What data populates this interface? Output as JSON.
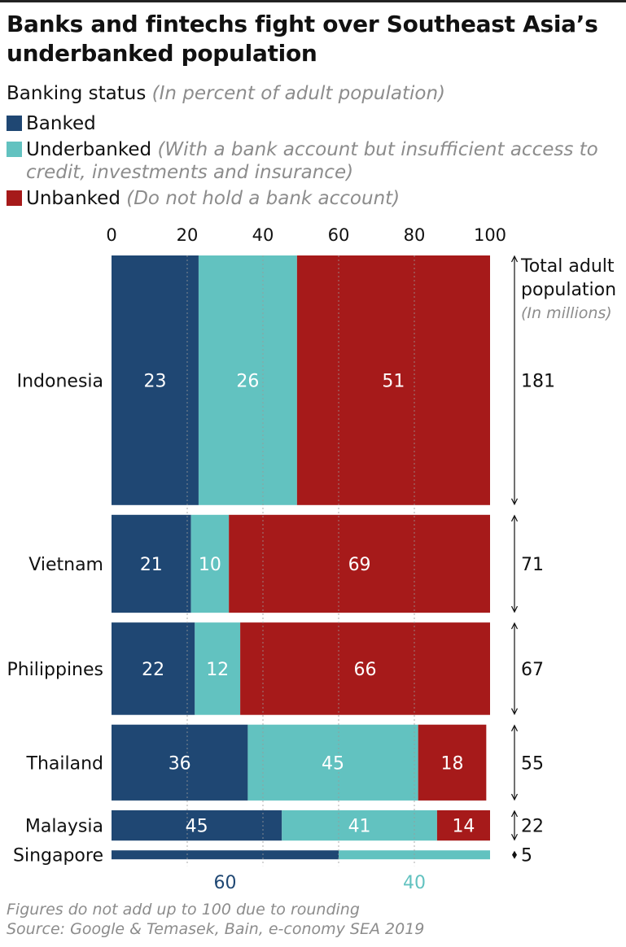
{
  "title": "Banks and fintechs fight over Southeast Asia’s underbanked population",
  "subtitle": {
    "text": "Banking status",
    "note": "(In percent of adult population)"
  },
  "legend": [
    {
      "label": "Banked",
      "note": "",
      "color": "#1f4773"
    },
    {
      "label": "Underbanked",
      "note": "(With a bank account but insufficient access to credit, investments and insurance)",
      "color": "#62c2c0"
    },
    {
      "label": "Unbanked",
      "note": "(Do not hold a bank account)",
      "color": "#a61a1a"
    }
  ],
  "right_header": {
    "line1": "Total adult",
    "line2": "population",
    "note": "(In millions)"
  },
  "footnotes": [
    "Figures do not add up to 100 due to rounding",
    "Source: Google & Temasek, Bain, e-conomy SEA 2019"
  ],
  "chart_data": {
    "type": "bar",
    "orientation": "horizontal",
    "stacked": true,
    "bar_height_encodes": "Total adult population (In millions)",
    "x_ticks": [
      "0",
      "20",
      "40",
      "60",
      "80",
      "100"
    ],
    "xlim": [
      0,
      100
    ],
    "grid": true,
    "categories": [
      "Indonesia",
      "Vietnam",
      "Philippines",
      "Thailand",
      "Malaysia",
      "Singapore"
    ],
    "population": [
      181,
      71,
      67,
      55,
      22,
      5
    ],
    "series": [
      {
        "name": "Banked",
        "values": [
          23,
          21,
          22,
          36,
          45,
          60
        ],
        "color": "#1f4773"
      },
      {
        "name": "Underbanked",
        "values": [
          26,
          10,
          12,
          45,
          41,
          40
        ],
        "color": "#62c2c0"
      },
      {
        "name": "Unbanked",
        "values": [
          51,
          69,
          66,
          18,
          14,
          0
        ],
        "color": "#a61a1a"
      }
    ]
  }
}
